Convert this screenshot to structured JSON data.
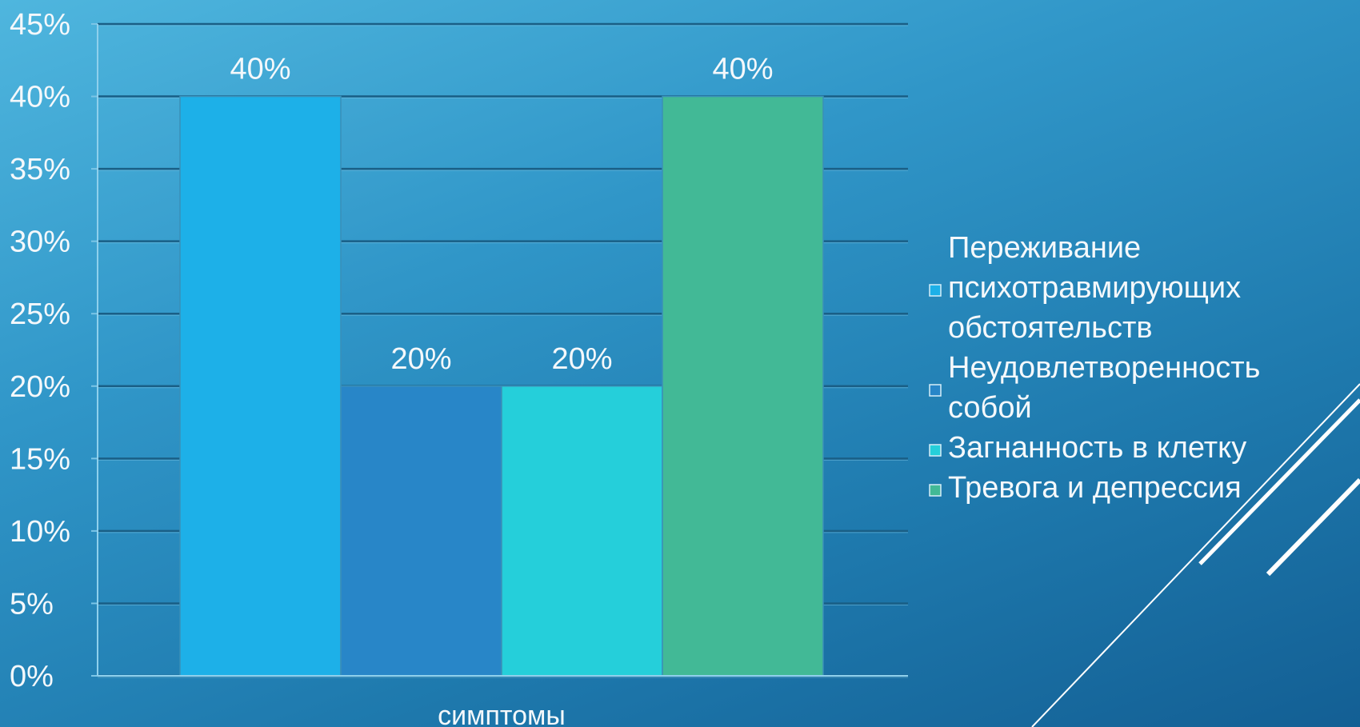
{
  "chart_data": {
    "type": "bar",
    "title": "",
    "xlabel": "симптомы",
    "ylabel": "",
    "categories": [
      "симптомы"
    ],
    "ylim": [
      0,
      45
    ],
    "yticks": [
      "0%",
      "5%",
      "10%",
      "15%",
      "20%",
      "25%",
      "30%",
      "35%",
      "40%",
      "45%"
    ],
    "grid": true,
    "legend_position": "right",
    "series": [
      {
        "name": "Переживание психотравмирующих обстоятельств",
        "values": [
          40
        ],
        "label": "40%",
        "color": "#1db0e8"
      },
      {
        "name": "Неудовлетворенность собой",
        "values": [
          20
        ],
        "label": "20%",
        "color": "#2886c8"
      },
      {
        "name": "Загнанность в клетку",
        "values": [
          20
        ],
        "label": "20%",
        "color": "#25cfda"
      },
      {
        "name": "Тревога и депрессия",
        "values": [
          40
        ],
        "label": "40%",
        "color": "#42b996"
      }
    ],
    "legend_lines": [
      [
        "Переживание",
        "психотравмирующих",
        "обстоятельств"
      ],
      [
        "Неудовлетворенность",
        "собой"
      ],
      [
        "Загнанность в клетку"
      ],
      [
        "Тревога и депрессия"
      ]
    ]
  }
}
